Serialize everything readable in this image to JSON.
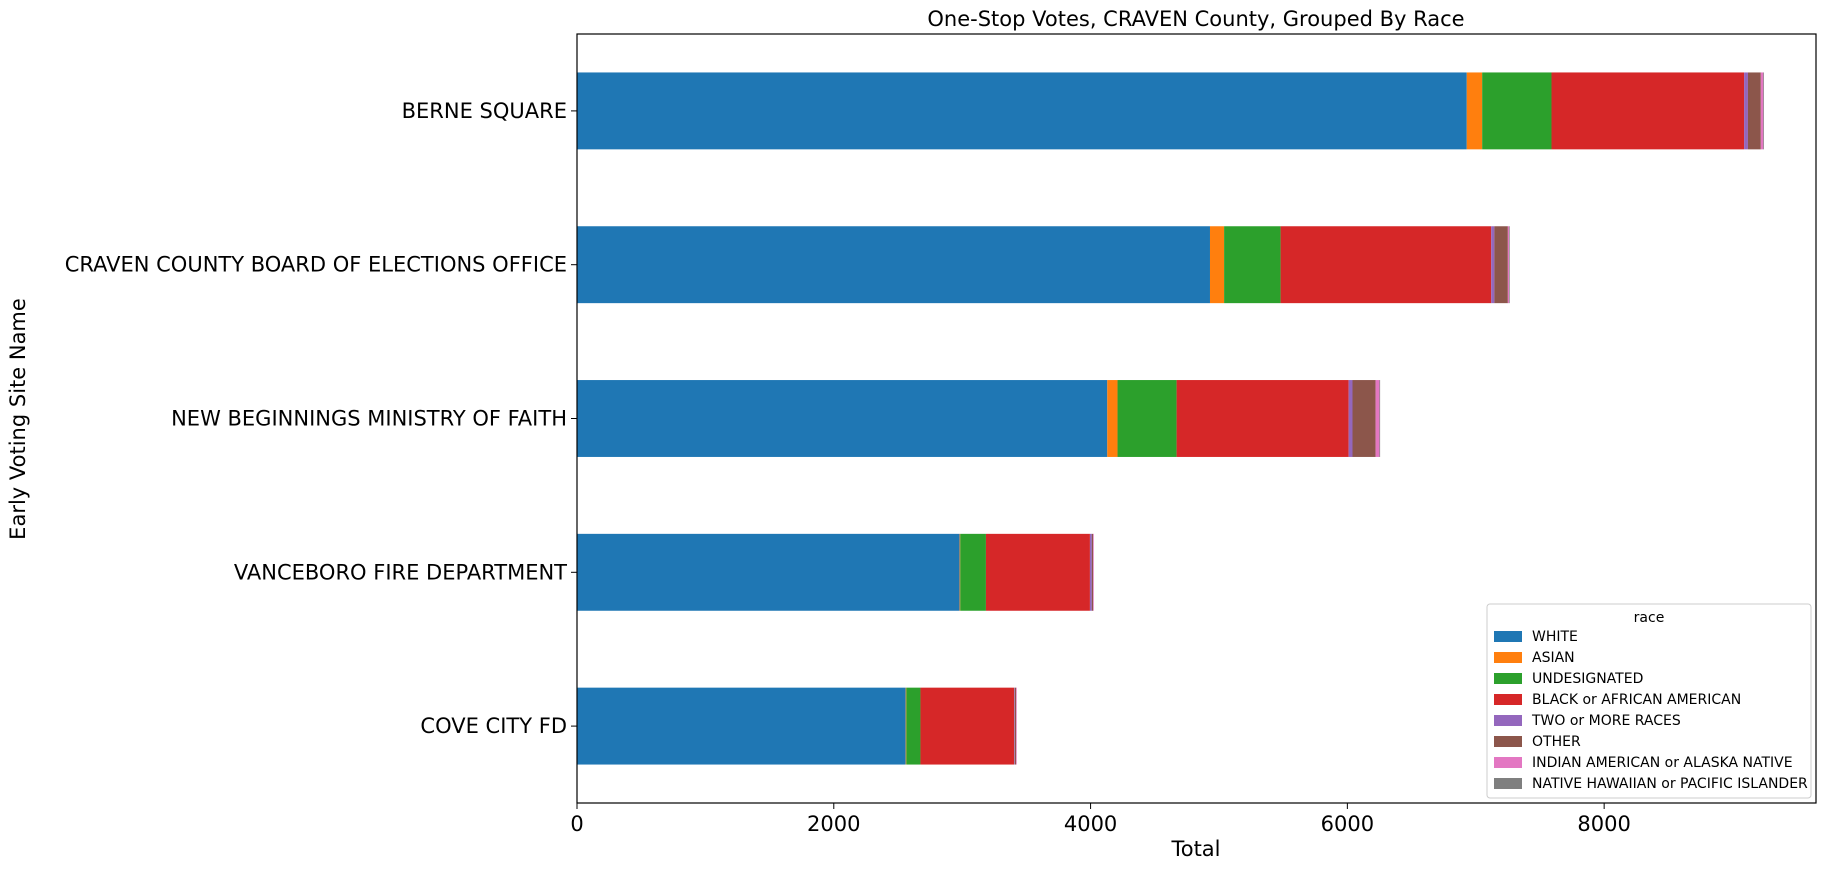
{
  "chart_data": {
    "type": "bar",
    "orientation": "horizontal",
    "stacked": true,
    "title": "One-Stop Votes, CRAVEN County, Grouped By Race",
    "xlabel": "Total",
    "ylabel": "Early Voting Site Name",
    "xlim": [
      0,
      9650
    ],
    "xticks": [
      0,
      2000,
      4000,
      6000,
      8000
    ],
    "grid": false,
    "legend": {
      "title": "race",
      "placement": "bottom-right"
    },
    "categories": [
      "BERNE  SQUARE",
      "CRAVEN COUNTY BOARD OF ELECTIONS OFFICE",
      "NEW BEGINNINGS MINISTRY OF FAITH",
      "VANCEBORO FIRE DEPARTMENT",
      "COVE CITY FD"
    ],
    "series": [
      {
        "name": "WHITE",
        "color": "#1f77b4",
        "values": [
          6930,
          4930,
          4130,
          2980,
          2560
        ]
      },
      {
        "name": "ASIAN",
        "color": "#ff7f0e",
        "values": [
          120,
          110,
          80,
          5,
          5
        ]
      },
      {
        "name": "UNDESIGNATED",
        "color": "#2ca02c",
        "values": [
          540,
          440,
          460,
          200,
          110
        ]
      },
      {
        "name": "BLACK or AFRICAN AMERICAN",
        "color": "#d62728",
        "values": [
          1500,
          1640,
          1340,
          810,
          730
        ]
      },
      {
        "name": "TWO or MORE RACES",
        "color": "#9467bd",
        "values": [
          30,
          25,
          30,
          15,
          5
        ]
      },
      {
        "name": "OTHER",
        "color": "#8c564b",
        "values": [
          100,
          105,
          180,
          10,
          10
        ]
      },
      {
        "name": "INDIAN AMERICAN or ALASKA NATIVE",
        "color": "#e377c2",
        "values": [
          20,
          10,
          30,
          5,
          5
        ]
      },
      {
        "name": "NATIVE HAWAIIAN or PACIFIC ISLANDER",
        "color": "#7f7f7f",
        "values": [
          5,
          5,
          5,
          0,
          0
        ]
      }
    ]
  }
}
